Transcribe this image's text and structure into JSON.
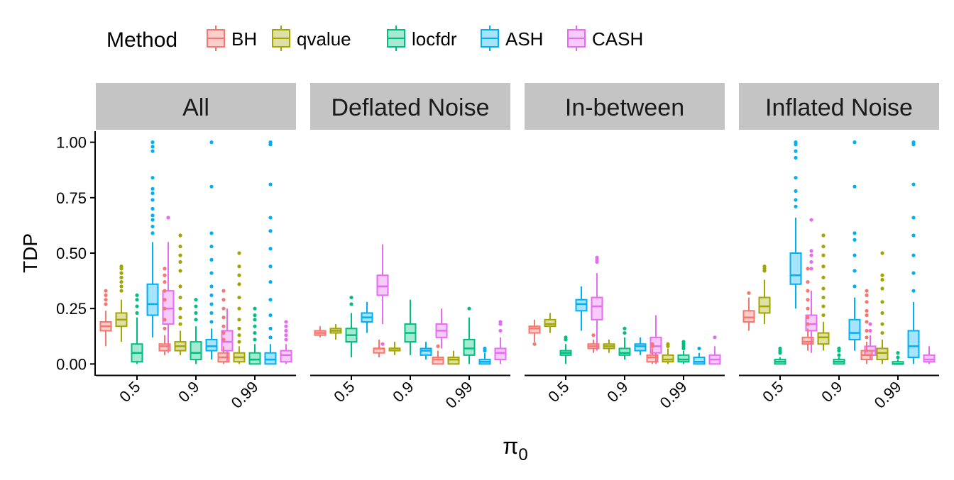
{
  "chart_data": {
    "type": "boxplot",
    "legend": {
      "title": "Method",
      "placement": "top-left",
      "entries": [
        {
          "name": "BH",
          "color": "#F8766D"
        },
        {
          "name": "qvalue",
          "color": "#A3A500"
        },
        {
          "name": "locfdr",
          "color": "#00BF7D"
        },
        {
          "name": "ASH",
          "color": "#00B0F6"
        },
        {
          "name": "CASH",
          "color": "#E76BF3"
        }
      ]
    },
    "xlabel": "π",
    "xlabel_subscript": "0",
    "ylabel": "TDP",
    "ylim": [
      -0.05,
      1.05
    ],
    "y_ticks": [
      "0.00",
      "0.25",
      "0.50",
      "0.75",
      "1.00"
    ],
    "x_categories": [
      "0.5",
      "0.9",
      "0.99"
    ],
    "panels": [
      {
        "name": "All",
        "boxes": [
          [
            {
              "min": 0.08,
              "q1": 0.15,
              "median": 0.17,
              "q3": 0.19,
              "max": 0.24,
              "outliers": [
                0.27,
                0.29,
                0.31,
                0.33
              ]
            },
            {
              "min": 0.1,
              "q1": 0.17,
              "median": 0.2,
              "q3": 0.23,
              "max": 0.29,
              "outliers": [
                0.33,
                0.35,
                0.37,
                0.39,
                0.41,
                0.43,
                0.44
              ]
            },
            {
              "min": 0.0,
              "q1": 0.01,
              "median": 0.05,
              "q3": 0.09,
              "max": 0.21,
              "outliers": [
                0.23,
                0.26,
                0.29,
                0.31
              ]
            },
            {
              "min": 0.12,
              "q1": 0.22,
              "median": 0.27,
              "q3": 0.36,
              "max": 0.55,
              "outliers": [
                0.59,
                0.62,
                0.65,
                0.67,
                0.7,
                0.74,
                0.77,
                0.79,
                0.84,
                0.96,
                0.98,
                1.0
              ]
            },
            {
              "min": 0.05,
              "q1": 0.18,
              "median": 0.25,
              "q3": 0.33,
              "max": 0.55,
              "outliers": [
                0.66
              ]
            }
          ],
          [
            {
              "min": 0.04,
              "q1": 0.06,
              "median": 0.08,
              "q3": 0.09,
              "max": 0.13,
              "outliers": [
                0.16,
                0.2,
                0.25,
                0.29,
                0.33,
                0.37,
                0.4,
                0.43
              ]
            },
            {
              "min": 0.04,
              "q1": 0.06,
              "median": 0.08,
              "q3": 0.1,
              "max": 0.15,
              "outliers": [
                0.18,
                0.21,
                0.25,
                0.3,
                0.35,
                0.42,
                0.46,
                0.49,
                0.53,
                0.58
              ]
            },
            {
              "min": 0.0,
              "q1": 0.02,
              "median": 0.05,
              "q3": 0.1,
              "max": 0.17,
              "outliers": [
                0.2,
                0.23,
                0.26,
                0.29
              ]
            },
            {
              "min": 0.02,
              "q1": 0.06,
              "median": 0.08,
              "q3": 0.11,
              "max": 0.16,
              "outliers": [
                0.19,
                0.23,
                0.27,
                0.31,
                0.35,
                0.41,
                0.47,
                0.53,
                0.59,
                0.8,
                1.0
              ]
            },
            {
              "min": 0.01,
              "q1": 0.06,
              "median": 0.1,
              "q3": 0.15,
              "max": 0.25,
              "outliers": []
            }
          ],
          [
            {
              "min": 0.0,
              "q1": 0.01,
              "median": 0.03,
              "q3": 0.05,
              "max": 0.08,
              "outliers": [
                0.11,
                0.14,
                0.17,
                0.21,
                0.25,
                0.29,
                0.33
              ]
            },
            {
              "min": 0.0,
              "q1": 0.01,
              "median": 0.03,
              "q3": 0.05,
              "max": 0.08,
              "outliers": [
                0.1,
                0.13,
                0.16,
                0.2,
                0.25,
                0.3,
                0.36,
                0.4,
                0.44,
                0.5
              ]
            },
            {
              "min": 0.0,
              "q1": 0.0,
              "median": 0.02,
              "q3": 0.05,
              "max": 0.09,
              "outliers": [
                0.11,
                0.14,
                0.17,
                0.2,
                0.22,
                0.25
              ]
            },
            {
              "min": 0.0,
              "q1": 0.0,
              "median": 0.02,
              "q3": 0.05,
              "max": 0.09,
              "outliers": [
                0.12,
                0.16,
                0.22,
                0.29,
                0.37,
                0.44,
                0.52,
                0.6,
                0.66,
                0.81,
                0.99,
                1.0
              ]
            },
            {
              "min": 0.0,
              "q1": 0.01,
              "median": 0.04,
              "q3": 0.06,
              "max": 0.09,
              "outliers": [
                0.11,
                0.13,
                0.15,
                0.17,
                0.19
              ]
            }
          ]
        ]
      },
      {
        "name": "Deflated Noise",
        "boxes": [
          [
            {
              "min": 0.12,
              "q1": 0.13,
              "median": 0.14,
              "q3": 0.15,
              "max": 0.17,
              "outliers": []
            },
            {
              "min": 0.11,
              "q1": 0.14,
              "median": 0.15,
              "q3": 0.16,
              "max": 0.18,
              "outliers": []
            },
            {
              "min": 0.03,
              "q1": 0.1,
              "median": 0.13,
              "q3": 0.16,
              "max": 0.23,
              "outliers": [
                0.27,
                0.3
              ]
            },
            {
              "min": 0.14,
              "q1": 0.19,
              "median": 0.21,
              "q3": 0.23,
              "max": 0.28,
              "outliers": []
            },
            {
              "min": 0.18,
              "q1": 0.31,
              "median": 0.35,
              "q3": 0.4,
              "max": 0.54,
              "outliers": [
                0.09
              ]
            }
          ],
          [
            {
              "min": 0.03,
              "q1": 0.05,
              "median": 0.07,
              "q3": 0.07,
              "max": 0.11,
              "outliers": []
            },
            {
              "min": 0.04,
              "q1": 0.06,
              "median": 0.07,
              "q3": 0.07,
              "max": 0.1,
              "outliers": []
            },
            {
              "min": 0.04,
              "q1": 0.1,
              "median": 0.14,
              "q3": 0.18,
              "max": 0.29,
              "outliers": []
            },
            {
              "min": 0.02,
              "q1": 0.04,
              "median": 0.06,
              "q3": 0.07,
              "max": 0.1,
              "outliers": []
            },
            {
              "min": 0.07,
              "q1": 0.12,
              "median": 0.15,
              "q3": 0.18,
              "max": 0.25,
              "outliers": []
            }
          ],
          [
            {
              "min": 0.0,
              "q1": 0.0,
              "median": 0.02,
              "q3": 0.03,
              "max": 0.06,
              "outliers": [
                0.08
              ]
            },
            {
              "min": 0.0,
              "q1": 0.0,
              "median": 0.02,
              "q3": 0.03,
              "max": 0.06,
              "outliers": []
            },
            {
              "min": 0.0,
              "q1": 0.04,
              "median": 0.07,
              "q3": 0.11,
              "max": 0.21,
              "outliers": [
                0.25
              ]
            },
            {
              "min": 0.0,
              "q1": 0.0,
              "median": 0.01,
              "q3": 0.02,
              "max": 0.05,
              "outliers": [
                0.06,
                0.07
              ]
            },
            {
              "min": 0.0,
              "q1": 0.02,
              "median": 0.05,
              "q3": 0.07,
              "max": 0.12,
              "outliers": [
                0.15,
                0.18,
                0.19
              ]
            }
          ]
        ]
      },
      {
        "name": "In-between",
        "boxes": [
          [
            {
              "min": 0.1,
              "q1": 0.14,
              "median": 0.16,
              "q3": 0.17,
              "max": 0.2,
              "outliers": [
                0.09
              ]
            },
            {
              "min": 0.14,
              "q1": 0.17,
              "median": 0.18,
              "q3": 0.2,
              "max": 0.23,
              "outliers": []
            },
            {
              "min": 0.0,
              "q1": 0.04,
              "median": 0.05,
              "q3": 0.06,
              "max": 0.09,
              "outliers": [
                0.11,
                0.12
              ]
            },
            {
              "min": 0.15,
              "q1": 0.24,
              "median": 0.27,
              "q3": 0.29,
              "max": 0.35,
              "outliers": []
            },
            {
              "min": 0.06,
              "q1": 0.2,
              "median": 0.26,
              "q3": 0.3,
              "max": 0.41,
              "outliers": [
                0.46,
                0.47,
                0.48
              ]
            }
          ],
          [
            {
              "min": 0.05,
              "q1": 0.07,
              "median": 0.08,
              "q3": 0.09,
              "max": 0.11,
              "outliers": [
                0.13
              ]
            },
            {
              "min": 0.05,
              "q1": 0.07,
              "median": 0.08,
              "q3": 0.09,
              "max": 0.11,
              "outliers": []
            },
            {
              "min": 0.02,
              "q1": 0.04,
              "median": 0.05,
              "q3": 0.07,
              "max": 0.12,
              "outliers": [
                0.14,
                0.16
              ]
            },
            {
              "min": 0.04,
              "q1": 0.06,
              "median": 0.08,
              "q3": 0.09,
              "max": 0.12,
              "outliers": []
            },
            {
              "min": 0.0,
              "q1": 0.05,
              "median": 0.08,
              "q3": 0.12,
              "max": 0.22,
              "outliers": []
            }
          ],
          [
            {
              "min": 0.0,
              "q1": 0.01,
              "median": 0.03,
              "q3": 0.04,
              "max": 0.07,
              "outliers": [
                0.08,
                0.09
              ]
            },
            {
              "min": 0.0,
              "q1": 0.01,
              "median": 0.02,
              "q3": 0.04,
              "max": 0.07,
              "outliers": [
                0.08,
                0.09
              ]
            },
            {
              "min": 0.0,
              "q1": 0.01,
              "median": 0.02,
              "q3": 0.04,
              "max": 0.06,
              "outliers": [
                0.07,
                0.08,
                0.09,
                0.1
              ]
            },
            {
              "min": 0.0,
              "q1": 0.0,
              "median": 0.01,
              "q3": 0.03,
              "max": 0.05,
              "outliers": [
                0.07
              ]
            },
            {
              "min": 0.0,
              "q1": 0.0,
              "median": 0.02,
              "q3": 0.04,
              "max": 0.08,
              "outliers": [
                0.12
              ]
            }
          ]
        ]
      },
      {
        "name": "Inflated Noise",
        "boxes": [
          [
            {
              "min": 0.15,
              "q1": 0.19,
              "median": 0.21,
              "q3": 0.24,
              "max": 0.3,
              "outliers": [
                0.32
              ]
            },
            {
              "min": 0.18,
              "q1": 0.23,
              "median": 0.26,
              "q3": 0.3,
              "max": 0.38,
              "outliers": [
                0.42,
                0.43,
                0.44
              ]
            },
            {
              "min": 0.0,
              "q1": 0.0,
              "median": 0.01,
              "q3": 0.02,
              "max": 0.03,
              "outliers": [
                0.05,
                0.06,
                0.07
              ]
            },
            {
              "min": 0.25,
              "q1": 0.36,
              "median": 0.4,
              "q3": 0.5,
              "max": 0.66,
              "outliers": [
                0.71,
                0.74,
                0.78,
                0.84,
                0.93,
                0.96,
                0.99,
                1.0
              ]
            },
            {
              "min": 0.05,
              "q1": 0.15,
              "median": 0.18,
              "q3": 0.22,
              "max": 0.33,
              "outliers": [
                0.43,
                0.46,
                0.49,
                0.51,
                0.65
              ]
            }
          ],
          [
            {
              "min": 0.06,
              "q1": 0.09,
              "median": 0.1,
              "q3": 0.12,
              "max": 0.16,
              "outliers": [
                0.18,
                0.21,
                0.25,
                0.29,
                0.33,
                0.37,
                0.43
              ]
            },
            {
              "min": 0.06,
              "q1": 0.09,
              "median": 0.12,
              "q3": 0.14,
              "max": 0.19,
              "outliers": [
                0.22,
                0.26,
                0.3,
                0.34,
                0.39,
                0.44,
                0.49,
                0.53,
                0.58
              ]
            },
            {
              "min": 0.0,
              "q1": 0.0,
              "median": 0.01,
              "q3": 0.02,
              "max": 0.03,
              "outliers": [
                0.04,
                0.06,
                0.07
              ]
            },
            {
              "min": 0.06,
              "q1": 0.11,
              "median": 0.14,
              "q3": 0.2,
              "max": 0.3,
              "outliers": [
                0.35,
                0.42,
                0.49,
                0.56,
                0.59,
                0.8,
                1.0
              ]
            },
            {
              "min": 0.02,
              "q1": 0.04,
              "median": 0.06,
              "q3": 0.08,
              "max": 0.13,
              "outliers": [
                0.15,
                0.18
              ]
            }
          ],
          [
            {
              "min": 0.0,
              "q1": 0.02,
              "median": 0.04,
              "q3": 0.06,
              "max": 0.1,
              "outliers": [
                0.12,
                0.15,
                0.19,
                0.22,
                0.24,
                0.28,
                0.31,
                0.33
              ]
            },
            {
              "min": 0.0,
              "q1": 0.02,
              "median": 0.05,
              "q3": 0.07,
              "max": 0.11,
              "outliers": [
                0.14,
                0.18,
                0.23,
                0.28,
                0.34,
                0.38,
                0.4,
                0.5
              ]
            },
            {
              "min": 0.0,
              "q1": 0.0,
              "median": 0.0,
              "q3": 0.01,
              "max": 0.02,
              "outliers": [
                0.03,
                0.05
              ]
            },
            {
              "min": 0.0,
              "q1": 0.03,
              "median": 0.08,
              "q3": 0.15,
              "max": 0.28,
              "outliers": [
                0.33,
                0.41,
                0.49,
                0.58,
                0.66,
                0.81,
                0.99,
                1.0
              ]
            },
            {
              "min": 0.0,
              "q1": 0.01,
              "median": 0.02,
              "q3": 0.04,
              "max": 0.08,
              "outliers": []
            }
          ]
        ]
      }
    ]
  }
}
